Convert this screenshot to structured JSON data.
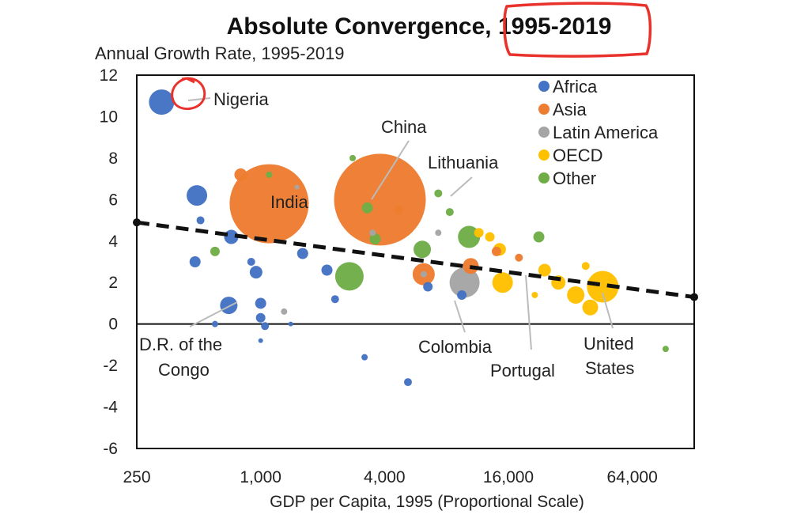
{
  "chart_data": {
    "type": "scatter",
    "title": "Absolute Convergence, 1995-2019",
    "subtitle": "Annual Growth Rate, 1995-2019",
    "xlabel": "GDP per Capita, 1995 (Proportional Scale)",
    "x_scale": "log2",
    "xlim": [
      250,
      128000
    ],
    "ylim": [
      -6,
      12
    ],
    "x_ticks": [
      250,
      1000,
      4000,
      16000,
      64000
    ],
    "x_tick_labels": [
      "250",
      "1,000",
      "4,000",
      "16,000",
      "64,000"
    ],
    "y_ticks": [
      -6,
      -4,
      -2,
      0,
      2,
      4,
      6,
      8,
      10,
      12
    ],
    "y_tick_labels": [
      "-6",
      "-4",
      "-2",
      "0",
      "2",
      "4",
      "6",
      "8",
      "10",
      "12"
    ],
    "grid": false,
    "legend_position": "top-right",
    "groups": [
      {
        "name": "Africa",
        "color": "#4472C4"
      },
      {
        "name": "Asia",
        "color": "#ED7D31"
      },
      {
        "name": "Latin America",
        "color": "#A5A5A5"
      },
      {
        "name": "OECD",
        "color": "#FFC000"
      },
      {
        "name": "Other",
        "color": "#70AD47"
      }
    ],
    "points": [
      {
        "group": "Asia",
        "x": 1100,
        "y": 5.8,
        "size": 50
      },
      {
        "group": "Asia",
        "x": 3800,
        "y": 6.0,
        "size": 58
      },
      {
        "group": "Asia",
        "x": 800,
        "y": 7.2,
        "size": 8
      },
      {
        "group": "Asia",
        "x": 6200,
        "y": 2.4,
        "size": 14
      },
      {
        "group": "Asia",
        "x": 10500,
        "y": 2.8,
        "size": 10
      },
      {
        "group": "Asia",
        "x": 14000,
        "y": 3.5,
        "size": 6
      },
      {
        "group": "Asia",
        "x": 4700,
        "y": 5.5,
        "size": 6
      },
      {
        "group": "Asia",
        "x": 18000,
        "y": 3.2,
        "size": 5
      },
      {
        "group": "Africa",
        "x": 330,
        "y": 10.7,
        "size": 16
      },
      {
        "group": "Africa",
        "x": 490,
        "y": 6.2,
        "size": 13
      },
      {
        "group": "Africa",
        "x": 720,
        "y": 4.2,
        "size": 9
      },
      {
        "group": "Africa",
        "x": 700,
        "y": 0.9,
        "size": 11
      },
      {
        "group": "Africa",
        "x": 480,
        "y": 3.0,
        "size": 7
      },
      {
        "group": "Africa",
        "x": 510,
        "y": 5.0,
        "size": 5
      },
      {
        "group": "Africa",
        "x": 950,
        "y": 2.5,
        "size": 8
      },
      {
        "group": "Africa",
        "x": 1000,
        "y": 1.0,
        "size": 7
      },
      {
        "group": "Africa",
        "x": 1050,
        "y": -0.1,
        "size": 5
      },
      {
        "group": "Africa",
        "x": 1000,
        "y": 0.3,
        "size": 6
      },
      {
        "group": "Africa",
        "x": 900,
        "y": 3.0,
        "size": 5
      },
      {
        "group": "Africa",
        "x": 1600,
        "y": 3.4,
        "size": 7
      },
      {
        "group": "Africa",
        "x": 2100,
        "y": 2.6,
        "size": 7
      },
      {
        "group": "Africa",
        "x": 2300,
        "y": 1.2,
        "size": 5
      },
      {
        "group": "Africa",
        "x": 3200,
        "y": -1.6,
        "size": 4
      },
      {
        "group": "Africa",
        "x": 5200,
        "y": -2.8,
        "size": 5
      },
      {
        "group": "Africa",
        "x": 6500,
        "y": 1.8,
        "size": 6
      },
      {
        "group": "Africa",
        "x": 9500,
        "y": 1.4,
        "size": 6
      },
      {
        "group": "Africa",
        "x": 1400,
        "y": 0.0,
        "size": 3
      },
      {
        "group": "Africa",
        "x": 600,
        "y": 0.0,
        "size": 4
      },
      {
        "group": "Africa",
        "x": 1000,
        "y": -0.8,
        "size": 3
      },
      {
        "group": "Latin America",
        "x": 9800,
        "y": 2.0,
        "size": 19
      },
      {
        "group": "Latin America",
        "x": 3500,
        "y": 4.4,
        "size": 4
      },
      {
        "group": "Latin America",
        "x": 6200,
        "y": 2.4,
        "size": 4
      },
      {
        "group": "Latin America",
        "x": 1300,
        "y": 0.6,
        "size": 4
      },
      {
        "group": "Latin America",
        "x": 7300,
        "y": 4.4,
        "size": 4
      },
      {
        "group": "Latin America",
        "x": 1500,
        "y": 6.6,
        "size": 3
      },
      {
        "group": "Other",
        "x": 2700,
        "y": 2.3,
        "size": 18
      },
      {
        "group": "Other",
        "x": 10300,
        "y": 4.2,
        "size": 14
      },
      {
        "group": "Other",
        "x": 6100,
        "y": 3.6,
        "size": 11
      },
      {
        "group": "Other",
        "x": 600,
        "y": 3.5,
        "size": 6
      },
      {
        "group": "Other",
        "x": 3600,
        "y": 4.1,
        "size": 7
      },
      {
        "group": "Other",
        "x": 3300,
        "y": 5.6,
        "size": 7
      },
      {
        "group": "Other",
        "x": 7300,
        "y": 6.3,
        "size": 5
      },
      {
        "group": "Other",
        "x": 8300,
        "y": 5.4,
        "size": 5
      },
      {
        "group": "Other",
        "x": 22500,
        "y": 4.2,
        "size": 7
      },
      {
        "group": "Other",
        "x": 1100,
        "y": 7.2,
        "size": 4
      },
      {
        "group": "Other",
        "x": 2800,
        "y": 8.0,
        "size": 4
      },
      {
        "group": "Other",
        "x": 93000,
        "y": -1.2,
        "size": 4
      },
      {
        "group": "OECD",
        "x": 15000,
        "y": 2.0,
        "size": 13
      },
      {
        "group": "OECD",
        "x": 46000,
        "y": 1.8,
        "size": 20
      },
      {
        "group": "OECD",
        "x": 24000,
        "y": 2.6,
        "size": 8
      },
      {
        "group": "OECD",
        "x": 28000,
        "y": 2.0,
        "size": 9
      },
      {
        "group": "OECD",
        "x": 34000,
        "y": 1.4,
        "size": 11
      },
      {
        "group": "OECD",
        "x": 40000,
        "y": 0.8,
        "size": 10
      },
      {
        "group": "OECD",
        "x": 14500,
        "y": 3.6,
        "size": 8
      },
      {
        "group": "OECD",
        "x": 13000,
        "y": 4.2,
        "size": 6
      },
      {
        "group": "OECD",
        "x": 38000,
        "y": 2.8,
        "size": 5
      },
      {
        "group": "OECD",
        "x": 11500,
        "y": 4.4,
        "size": 6
      },
      {
        "group": "OECD",
        "x": 21500,
        "y": 1.4,
        "size": 4
      }
    ],
    "trendline": {
      "x": [
        250,
        128000
      ],
      "y": [
        4.9,
        1.3
      ]
    },
    "annotations": [
      {
        "text": "Nigeria"
      },
      {
        "text": "India"
      },
      {
        "text": "China"
      },
      {
        "text": "Lithuania"
      },
      {
        "text": "D.R. of the"
      },
      {
        "text": "Congo"
      },
      {
        "text": "Colombia"
      },
      {
        "text": "Portugal"
      },
      {
        "text": "United"
      },
      {
        "text": "States"
      }
    ],
    "highlight_marks": [
      "title-year-box",
      "nigeria-circle"
    ]
  }
}
